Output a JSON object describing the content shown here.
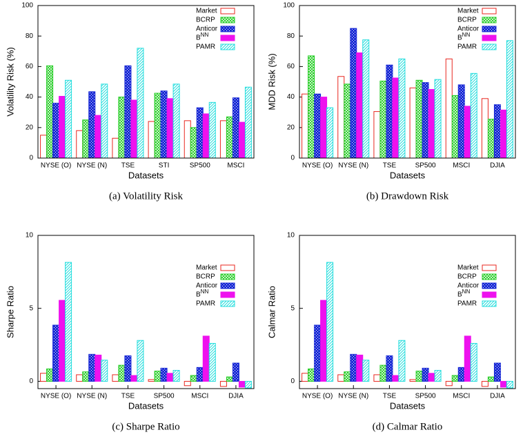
{
  "chart_data": [
    {
      "type": "bar",
      "caption": "(a) Volatility Risk",
      "xlabel": "Datasets",
      "ylabel": "Volatility Risk (%)",
      "categories": [
        "NYSE (O)",
        "NYSE (N)",
        "TSE",
        "STI",
        "SP500",
        "MSCI"
      ],
      "ylim": [
        0,
        100
      ],
      "yticks": [
        0,
        20,
        40,
        60,
        80,
        100
      ],
      "legend": "upper right",
      "series": [
        {
          "name": "Market",
          "color": "#e8261e",
          "hatch": "none",
          "values": [
            15,
            18,
            13,
            24,
            24.5,
            24.5
          ]
        },
        {
          "name": "BCRP",
          "color": "#22cc22",
          "hatch": "cross",
          "values": [
            60.5,
            25,
            40,
            42.5,
            20,
            27
          ]
        },
        {
          "name": "Anticor",
          "color": "#1a2bd6",
          "hatch": "dots",
          "values": [
            36,
            43.5,
            60.5,
            44,
            33,
            39.5
          ]
        },
        {
          "name": "B^NN",
          "color": "#ee11ee",
          "hatch": "solid",
          "values": [
            40.5,
            28,
            38,
            39,
            29,
            23.5
          ]
        },
        {
          "name": "PAMR",
          "color": "#22dddd",
          "hatch": "diagonal",
          "values": [
            51,
            48.5,
            72,
            48.5,
            36.5,
            46.5
          ]
        }
      ]
    },
    {
      "type": "bar",
      "caption": "(b) Drawdown Risk",
      "xlabel": "Datasets",
      "ylabel": "MDD Risk (%)",
      "categories": [
        "NYSE (O)",
        "NYSE (N)",
        "TSE",
        "SP500",
        "MSCI",
        "DJIA"
      ],
      "ylim": [
        0,
        100
      ],
      "yticks": [
        0,
        20,
        40,
        60,
        80,
        100
      ],
      "legend": "upper right",
      "series": [
        {
          "name": "Market",
          "color": "#e8261e",
          "hatch": "none",
          "values": [
            42,
            53.5,
            30.5,
            46,
            65,
            39
          ]
        },
        {
          "name": "BCRP",
          "color": "#22cc22",
          "hatch": "cross",
          "values": [
            67,
            48.5,
            50.5,
            51,
            41,
            25.5
          ]
        },
        {
          "name": "Anticor",
          "color": "#1a2bd6",
          "hatch": "dots",
          "values": [
            42,
            85,
            61,
            49.5,
            48,
            35
          ]
        },
        {
          "name": "B^NN",
          "color": "#ee11ee",
          "hatch": "solid",
          "values": [
            40,
            69,
            52.5,
            45,
            34,
            31.5
          ]
        },
        {
          "name": "PAMR",
          "color": "#22dddd",
          "hatch": "diagonal",
          "values": [
            33,
            77.5,
            65,
            51.5,
            55.5,
            77
          ]
        }
      ]
    },
    {
      "type": "bar",
      "caption": "(c) Sharpe Ratio",
      "xlabel": "Datasets",
      "ylabel": "Sharpe Ratio",
      "categories": [
        "NYSE (O)",
        "NYSE (N)",
        "TSE",
        "SP500",
        "MSCI",
        "DJIA"
      ],
      "ylim": [
        -0.5,
        10
      ],
      "yticks": [
        0,
        5,
        10
      ],
      "legend": "center right",
      "series": [
        {
          "name": "Market",
          "color": "#e8261e",
          "hatch": "none",
          "values": [
            0.55,
            0.45,
            0.45,
            0.12,
            -0.3,
            -0.35
          ]
        },
        {
          "name": "BCRP",
          "color": "#22cc22",
          "hatch": "cross",
          "values": [
            0.85,
            0.65,
            1.1,
            0.7,
            0.4,
            0.3
          ]
        },
        {
          "name": "Anticor",
          "color": "#1a2bd6",
          "hatch": "dots",
          "values": [
            3.85,
            1.85,
            1.75,
            0.9,
            0.95,
            1.25
          ]
        },
        {
          "name": "B^NN",
          "color": "#ee11ee",
          "hatch": "solid",
          "values": [
            5.55,
            1.8,
            0.4,
            0.55,
            3.1,
            -0.4
          ]
        },
        {
          "name": "PAMR",
          "color": "#22dddd",
          "hatch": "diagonal",
          "values": [
            8.15,
            1.45,
            2.8,
            0.75,
            2.6,
            -0.45
          ]
        }
      ]
    },
    {
      "type": "bar",
      "caption": "(d) Calmar Ratio",
      "xlabel": "Datasets",
      "ylabel": "Calmar Ratio",
      "categories": [
        "NYSE (O)",
        "NYSE (N)",
        "TSE",
        "SP500",
        "MSCI",
        "DJIA"
      ],
      "ylim": [
        -0.5,
        10
      ],
      "yticks": [
        0,
        5,
        10
      ],
      "legend": "center right",
      "series": [
        {
          "name": "Market",
          "color": "#e8261e",
          "hatch": "none",
          "values": [
            0.55,
            0.45,
            0.45,
            0.12,
            -0.3,
            -0.35
          ]
        },
        {
          "name": "BCRP",
          "color": "#22cc22",
          "hatch": "cross",
          "values": [
            0.85,
            0.65,
            1.1,
            0.7,
            0.4,
            0.3
          ]
        },
        {
          "name": "Anticor",
          "color": "#1a2bd6",
          "hatch": "dots",
          "values": [
            3.85,
            1.85,
            1.75,
            0.9,
            0.95,
            1.25
          ]
        },
        {
          "name": "B^NN",
          "color": "#ee11ee",
          "hatch": "solid",
          "values": [
            5.55,
            1.8,
            0.4,
            0.55,
            3.1,
            -0.4
          ]
        },
        {
          "name": "PAMR",
          "color": "#22dddd",
          "hatch": "diagonal",
          "values": [
            8.15,
            1.45,
            2.8,
            0.75,
            2.6,
            -0.45
          ]
        }
      ]
    }
  ]
}
